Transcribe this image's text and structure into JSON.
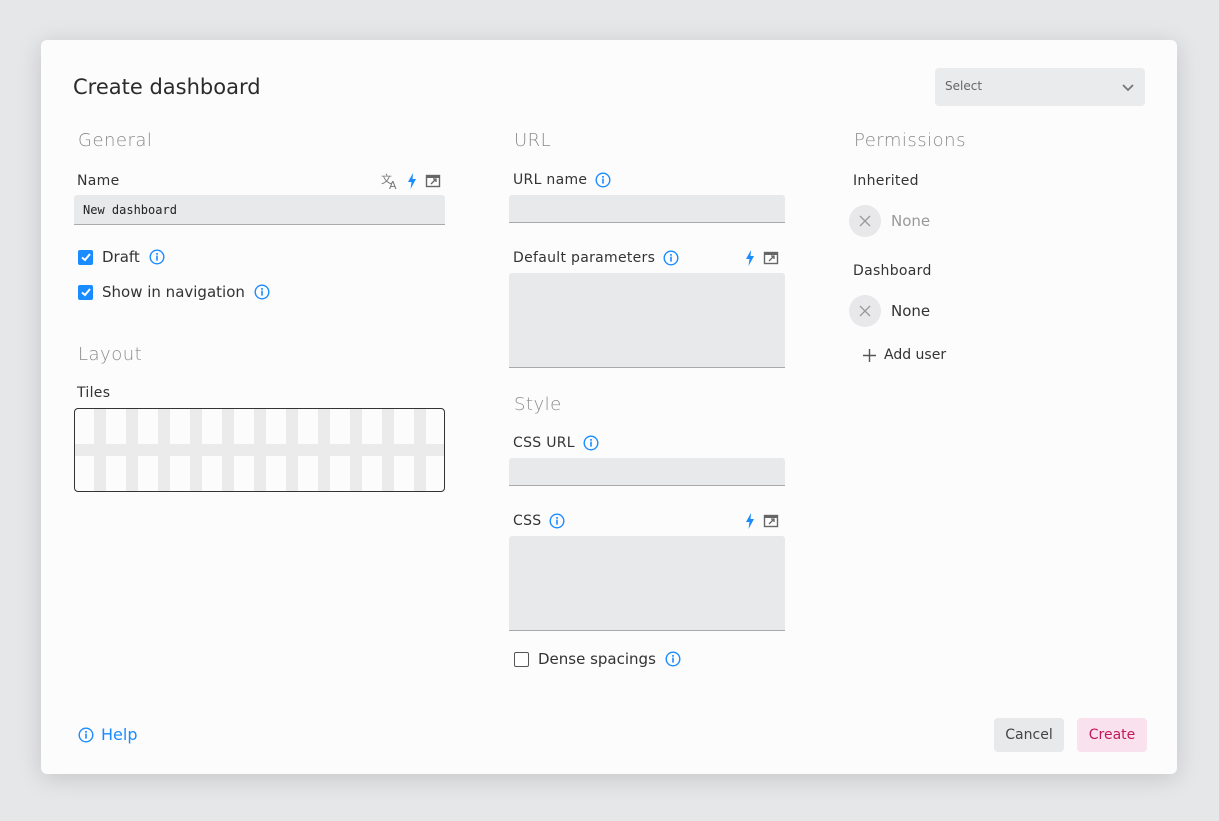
{
  "dialog": {
    "title": "Create dashboard",
    "select_placeholder": "Select"
  },
  "general": {
    "heading": "General",
    "name_label": "Name",
    "name_value": "New dashboard",
    "draft_label": "Draft",
    "draft_checked": true,
    "show_nav_label": "Show in navigation",
    "show_nav_checked": true
  },
  "layout": {
    "heading": "Layout",
    "tiles_label": "Tiles"
  },
  "url": {
    "heading": "URL",
    "url_name_label": "URL name",
    "url_name_value": "",
    "default_params_label": "Default parameters",
    "default_params_value": ""
  },
  "style": {
    "heading": "Style",
    "css_url_label": "CSS URL",
    "css_url_value": "",
    "css_label": "CSS",
    "css_value": "",
    "dense_label": "Dense spacings",
    "dense_checked": false
  },
  "permissions": {
    "heading": "Permissions",
    "inherited_label": "Inherited",
    "inherited_value": "None",
    "dashboard_label": "Dashboard",
    "dashboard_value": "None",
    "add_user_label": "Add user"
  },
  "footer": {
    "help_label": "Help",
    "cancel_label": "Cancel",
    "create_label": "Create"
  },
  "colors": {
    "accent": "#1a8cff",
    "create_bg": "#fae1ee",
    "create_text": "#c2185b",
    "cancel_bg": "#e8e9eb"
  }
}
